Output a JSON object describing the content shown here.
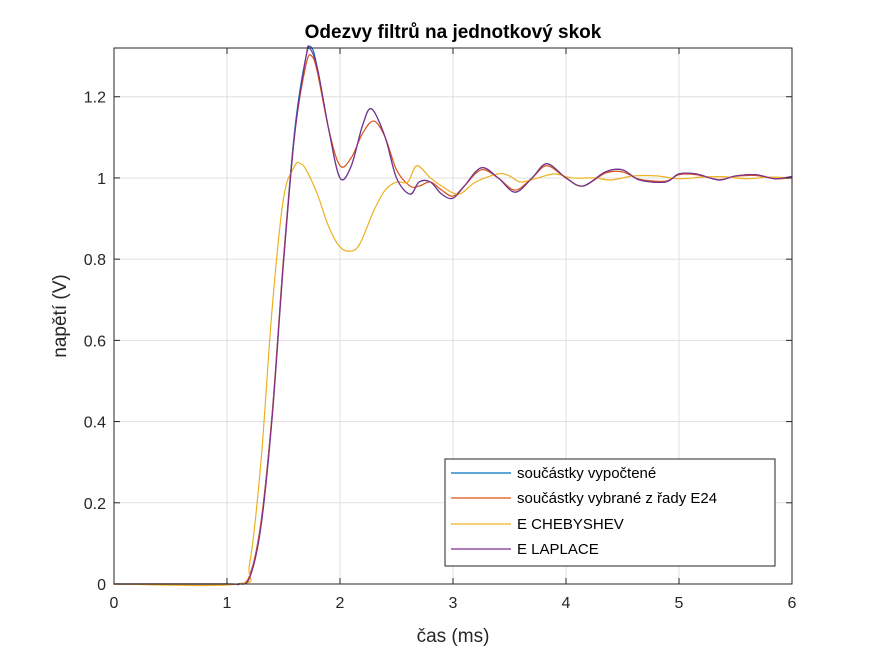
{
  "chart_data": {
    "type": "line",
    "title": "Odezvy filtrů na jednotkový skok",
    "xlabel": "čas (ms)",
    "ylabel": "napětí (V)",
    "xlim": [
      0,
      6
    ],
    "ylim": [
      0,
      1.32
    ],
    "xticks": [
      0,
      1,
      2,
      3,
      4,
      5,
      6
    ],
    "yticks": [
      0,
      0.2,
      0.4,
      0.6,
      0.8,
      1,
      1.2
    ],
    "xtick_labels": [
      "0",
      "1",
      "2",
      "3",
      "4",
      "5",
      "6"
    ],
    "ytick_labels": [
      "0",
      "0.2",
      "0.4",
      "0.6",
      "0.8",
      "1",
      "1.2"
    ],
    "grid": true,
    "legend_position": "bottom-right",
    "series": [
      {
        "name": "součástky vypočtené",
        "color": "#0072bd",
        "x": [
          0,
          1.0,
          1.1,
          1.2,
          1.3,
          1.4,
          1.5,
          1.6,
          1.7,
          1.75,
          1.8,
          1.9,
          2.0,
          2.1,
          2.2,
          2.28,
          2.4,
          2.5,
          2.62,
          2.7,
          2.8,
          2.9,
          3.0,
          3.1,
          3.25,
          3.4,
          3.55,
          3.7,
          3.83,
          4.0,
          4.15,
          4.35,
          4.5,
          4.65,
          4.88,
          5.0,
          5.15,
          5.35,
          5.5,
          5.68,
          5.85,
          6.0
        ],
        "y": [
          0,
          0,
          0,
          0.02,
          0.15,
          0.42,
          0.8,
          1.12,
          1.3,
          1.32,
          1.27,
          1.12,
          1.0,
          1.03,
          1.13,
          1.17,
          1.1,
          1.0,
          0.96,
          0.99,
          0.99,
          0.96,
          0.95,
          0.98,
          1.025,
          1.0,
          0.965,
          1.0,
          1.035,
          1.0,
          0.98,
          1.015,
          1.02,
          0.995,
          0.99,
          1.01,
          1.01,
          0.995,
          1.005,
          1.008,
          0.998,
          1.002
        ]
      },
      {
        "name": "součástky vybrané z řady E24",
        "color": "#d95319",
        "x": [
          0,
          1.0,
          1.1,
          1.2,
          1.3,
          1.4,
          1.5,
          1.6,
          1.7,
          1.75,
          1.8,
          1.9,
          2.0,
          2.1,
          2.2,
          2.3,
          2.4,
          2.5,
          2.62,
          2.7,
          2.8,
          2.9,
          3.0,
          3.1,
          3.25,
          3.4,
          3.55,
          3.7,
          3.83,
          4.0,
          4.15,
          4.35,
          4.5,
          4.65,
          4.88,
          5.0,
          5.15,
          5.35,
          5.5,
          5.68,
          5.85,
          6.0
        ],
        "y": [
          0,
          0,
          0,
          0.02,
          0.15,
          0.42,
          0.8,
          1.11,
          1.28,
          1.3,
          1.26,
          1.12,
          1.03,
          1.05,
          1.11,
          1.14,
          1.1,
          1.02,
          0.98,
          0.98,
          0.99,
          0.97,
          0.955,
          0.98,
          1.02,
          1.0,
          0.97,
          1.0,
          1.03,
          1.0,
          0.98,
          1.012,
          1.015,
          0.997,
          0.992,
          1.008,
          1.008,
          0.996,
          1.004,
          1.006,
          0.998,
          1.0
        ]
      },
      {
        "name": "E CHEBYSHEV",
        "color": "#edb120",
        "x": [
          0,
          1.1,
          1.2,
          1.3,
          1.4,
          1.5,
          1.6,
          1.65,
          1.7,
          1.8,
          1.9,
          2.0,
          2.1,
          2.18,
          2.3,
          2.4,
          2.5,
          2.6,
          2.68,
          2.8,
          2.9,
          3.05,
          3.2,
          3.4,
          3.5,
          3.6,
          3.75,
          3.9,
          4.05,
          4.25,
          4.4,
          4.6,
          4.8,
          5.0,
          5.2,
          5.4,
          5.6,
          5.8,
          6.0
        ],
        "y": [
          0,
          0,
          0.05,
          0.3,
          0.68,
          0.95,
          1.03,
          1.035,
          1.02,
          0.96,
          0.88,
          0.83,
          0.82,
          0.84,
          0.92,
          0.97,
          0.99,
          0.99,
          1.03,
          1.0,
          0.98,
          0.96,
          0.99,
          1.01,
          1.005,
          0.99,
          1.0,
          1.01,
          1.0,
          1.0,
          0.995,
          1.005,
          1.005,
          0.998,
          1.002,
          1.003,
          0.998,
          1.002,
          1.0
        ]
      },
      {
        "name": "E LAPLACE",
        "color": "#7e2f8e",
        "x": [
          0,
          1.0,
          1.1,
          1.2,
          1.3,
          1.4,
          1.5,
          1.6,
          1.7,
          1.73,
          1.8,
          1.9,
          2.0,
          2.1,
          2.2,
          2.28,
          2.4,
          2.5,
          2.62,
          2.7,
          2.8,
          2.9,
          3.0,
          3.1,
          3.25,
          3.4,
          3.55,
          3.7,
          3.83,
          4.0,
          4.15,
          4.35,
          4.5,
          4.65,
          4.88,
          5.0,
          5.15,
          5.35,
          5.5,
          5.68,
          5.85,
          6.0
        ],
        "y": [
          0,
          0,
          0,
          0.015,
          0.14,
          0.41,
          0.79,
          1.11,
          1.3,
          1.32,
          1.27,
          1.12,
          1.0,
          1.03,
          1.13,
          1.17,
          1.1,
          1.0,
          0.96,
          0.99,
          0.99,
          0.96,
          0.95,
          0.98,
          1.025,
          1.0,
          0.965,
          1.0,
          1.035,
          1.0,
          0.98,
          1.015,
          1.02,
          0.995,
          0.99,
          1.01,
          1.01,
          0.995,
          1.005,
          1.008,
          0.998,
          1.004
        ]
      }
    ]
  }
}
